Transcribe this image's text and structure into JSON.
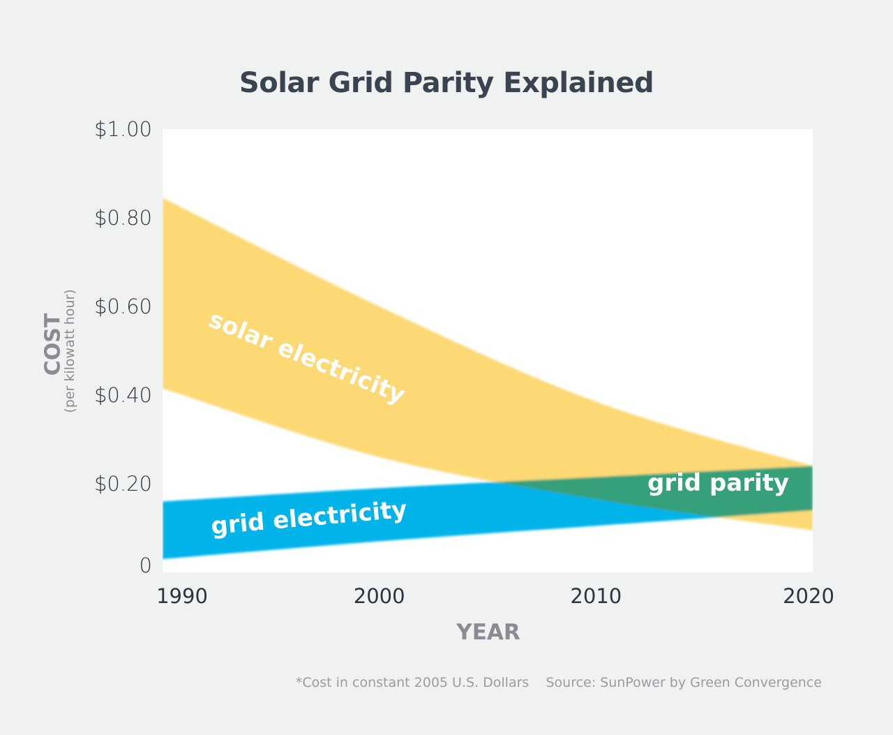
{
  "chart_data": {
    "type": "area",
    "title": "Solar Grid Parity Explained",
    "ylabel": "COST",
    "ylabel_sub": "(per kilowatt hour)",
    "xlabel": "YEAR",
    "xlim": [
      1990,
      2020
    ],
    "ylim": [
      0,
      1.0
    ],
    "x_ticks": [
      "1990",
      "2000",
      "2010",
      "2020"
    ],
    "y_ticks": [
      "0",
      "$0.20",
      "$0.40",
      "$0.60",
      "$0.80",
      "$1.00"
    ],
    "grid": false,
    "x": [
      1990,
      2000,
      2010,
      2020
    ],
    "series": [
      {
        "name": "solar electricity",
        "upper": [
          0.845,
          0.6,
          0.385,
          0.24
        ],
        "lower": [
          0.415,
          0.26,
          0.165,
          0.095
        ],
        "color": "#fcd975"
      },
      {
        "name": "grid electricity",
        "upper": [
          0.16,
          0.19,
          0.215,
          0.24
        ],
        "lower": [
          0.03,
          0.07,
          0.105,
          0.14
        ],
        "color": "#00b4e9"
      }
    ],
    "overlap": {
      "name": "grid parity",
      "color": "#36a07a"
    },
    "footnote": "*Cost in constant 2005 U.S. Dollars",
    "source": "Source: SunPower by Green Convergence"
  }
}
